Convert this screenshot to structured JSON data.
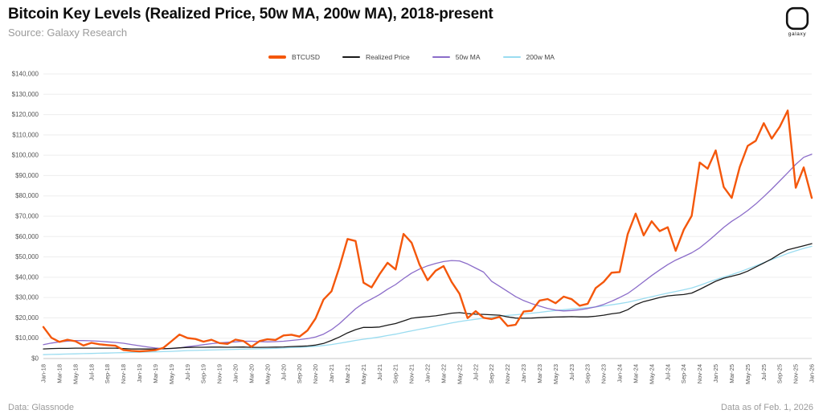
{
  "header": {
    "title": "Bitcoin Key Levels (Realized Price, 50w MA, 200w MA), 2018-present",
    "source": "Source: Galaxy Research",
    "logo_label": "galaxy"
  },
  "footer": {
    "left": "Data: Glassnode",
    "right": "Data as of Feb. 1, 2026"
  },
  "chart_data": {
    "type": "line",
    "title": "Bitcoin Key Levels (Realized Price, 50w MA, 200w MA), 2018-present",
    "xlabel": "",
    "ylabel": "",
    "ylim": [
      0,
      140000
    ],
    "y_tick_step": 10000,
    "x_tick_step": 2,
    "grid": true,
    "legend_position": "top",
    "x": [
      "Jan-18",
      "Feb-18",
      "Mar-18",
      "Apr-18",
      "May-18",
      "Jun-18",
      "Jul-18",
      "Aug-18",
      "Sep-18",
      "Oct-18",
      "Nov-18",
      "Dec-18",
      "Jan-19",
      "Feb-19",
      "Mar-19",
      "Apr-19",
      "May-19",
      "Jun-19",
      "Jul-19",
      "Aug-19",
      "Sep-19",
      "Oct-19",
      "Nov-19",
      "Dec-19",
      "Jan-20",
      "Feb-20",
      "Mar-20",
      "Apr-20",
      "May-20",
      "Jun-20",
      "Jul-20",
      "Aug-20",
      "Sep-20",
      "Oct-20",
      "Nov-20",
      "Dec-20",
      "Jan-21",
      "Feb-21",
      "Mar-21",
      "Apr-21",
      "May-21",
      "Jun-21",
      "Jul-21",
      "Aug-21",
      "Sep-21",
      "Oct-21",
      "Nov-21",
      "Dec-21",
      "Jan-22",
      "Feb-22",
      "Mar-22",
      "Apr-22",
      "May-22",
      "Jun-22",
      "Jul-22",
      "Aug-22",
      "Sep-22",
      "Oct-22",
      "Nov-22",
      "Dec-22",
      "Jan-23",
      "Feb-23",
      "Mar-23",
      "Apr-23",
      "May-23",
      "Jun-23",
      "Jul-23",
      "Aug-23",
      "Sep-23",
      "Oct-23",
      "Nov-23",
      "Dec-23",
      "Jan-24",
      "Feb-24",
      "Mar-24",
      "Apr-24",
      "May-24",
      "Jun-24",
      "Jul-24",
      "Aug-24",
      "Sep-24",
      "Oct-24",
      "Nov-24",
      "Dec-24",
      "Jan-25",
      "Feb-25",
      "Mar-25",
      "Apr-25",
      "May-25",
      "Jun-25",
      "Jul-25",
      "Aug-25",
      "Sep-25",
      "Oct-25",
      "Nov-25",
      "Dec-25",
      "Jan-26"
    ],
    "series": [
      {
        "name": "BTCUSD",
        "color": "#f4570b",
        "width": 2.4,
        "values": [
          15500,
          10200,
          8200,
          9200,
          8500,
          6400,
          7700,
          7000,
          6600,
          6300,
          4200,
          3800,
          3500,
          3800,
          4100,
          5300,
          8500,
          11800,
          10100,
          9600,
          8300,
          9200,
          7600,
          7200,
          9300,
          8600,
          5800,
          8600,
          9450,
          9150,
          11350,
          11700,
          10800,
          13800,
          19700,
          29000,
          33100,
          45200,
          58800,
          57800,
          37300,
          35000,
          41500,
          47100,
          43800,
          61300,
          57000,
          46200,
          38500,
          43200,
          45500,
          37700,
          31800,
          19900,
          23300,
          20050,
          19400,
          20500,
          16000,
          16600,
          23100,
          23500,
          28500,
          29250,
          27200,
          30450,
          29200,
          26000,
          26950,
          34650,
          37700,
          42250,
          42550,
          61200,
          71300,
          60600,
          67500,
          62700,
          64600,
          53000,
          63300,
          70200,
          96400,
          93400,
          102400,
          84350,
          79000,
          94200,
          104600,
          107100,
          115800,
          108200,
          114000,
          122000,
          84000,
          94000,
          79000
        ]
      },
      {
        "name": "Realized Price",
        "color": "#1a1a1a",
        "width": 1.3,
        "values": [
          4700,
          4900,
          5000,
          5000,
          5100,
          5100,
          5100,
          5100,
          5100,
          5100,
          4900,
          4700,
          4650,
          4650,
          4700,
          4800,
          5000,
          5250,
          5450,
          5550,
          5550,
          5600,
          5600,
          5550,
          5600,
          5650,
          5500,
          5500,
          5550,
          5600,
          5700,
          5900,
          6000,
          6150,
          6600,
          7400,
          8900,
          10600,
          12600,
          14200,
          15300,
          15300,
          15500,
          16400,
          17200,
          18500,
          19800,
          20300,
          20600,
          21000,
          21600,
          22300,
          22600,
          22100,
          21800,
          21700,
          21500,
          21300,
          20500,
          19900,
          19800,
          19900,
          20100,
          20300,
          20400,
          20500,
          20600,
          20500,
          20500,
          20800,
          21300,
          22000,
          22500,
          24000,
          26500,
          28000,
          29000,
          30000,
          30800,
          31200,
          31500,
          32200,
          34000,
          36000,
          38000,
          39500,
          40500,
          41500,
          43000,
          45000,
          47000,
          49000,
          51500,
          53500,
          54500,
          55500,
          56500
        ]
      },
      {
        "name": "50w MA",
        "color": "#8b6cc9",
        "width": 1.3,
        "values": [
          6800,
          7600,
          8200,
          8600,
          8800,
          8800,
          8700,
          8500,
          8200,
          7900,
          7500,
          6900,
          6300,
          5700,
          5200,
          4900,
          4900,
          5200,
          5800,
          6300,
          6800,
          7300,
          7700,
          8000,
          8200,
          8500,
          8500,
          8300,
          8200,
          8300,
          8500,
          8900,
          9300,
          9800,
          10600,
          12000,
          14200,
          17200,
          20800,
          24500,
          27200,
          29300,
          31500,
          34100,
          36400,
          39300,
          42000,
          44000,
          45600,
          46800,
          47700,
          48200,
          48000,
          46500,
          44500,
          42500,
          38000,
          35500,
          33000,
          30500,
          28500,
          27000,
          25800,
          24600,
          23800,
          23400,
          23600,
          24000,
          24600,
          25400,
          26600,
          28200,
          30000,
          32000,
          34800,
          37800,
          40800,
          43600,
          46200,
          48400,
          50200,
          52000,
          54400,
          57600,
          61000,
          64500,
          67500,
          70000,
          72800,
          76000,
          79600,
          83400,
          87400,
          91400,
          95500,
          99000,
          100500
        ]
      },
      {
        "name": "200w MA",
        "color": "#9adcf0",
        "width": 1.3,
        "values": [
          1900,
          2000,
          2100,
          2200,
          2300,
          2400,
          2500,
          2600,
          2700,
          2800,
          2900,
          3000,
          3100,
          3200,
          3300,
          3400,
          3500,
          3700,
          3900,
          4000,
          4100,
          4200,
          4300,
          4400,
          4500,
          4600,
          4700,
          4800,
          4900,
          5000,
          5200,
          5400,
          5500,
          5700,
          6000,
          6400,
          6900,
          7500,
          8200,
          8900,
          9500,
          10000,
          10600,
          11300,
          12000,
          12800,
          13600,
          14400,
          15100,
          15900,
          16700,
          17500,
          18200,
          18800,
          19300,
          19800,
          20300,
          20800,
          21200,
          21500,
          21900,
          22300,
          22700,
          23200,
          23600,
          24000,
          24400,
          24700,
          25000,
          25400,
          25900,
          26400,
          27000,
          27700,
          28600,
          29500,
          30400,
          31300,
          32200,
          33000,
          33800,
          34700,
          36000,
          37400,
          38800,
          40100,
          41300,
          42600,
          44100,
          45600,
          47200,
          48700,
          50200,
          51700,
          53000,
          54200,
          55200
        ]
      }
    ]
  }
}
